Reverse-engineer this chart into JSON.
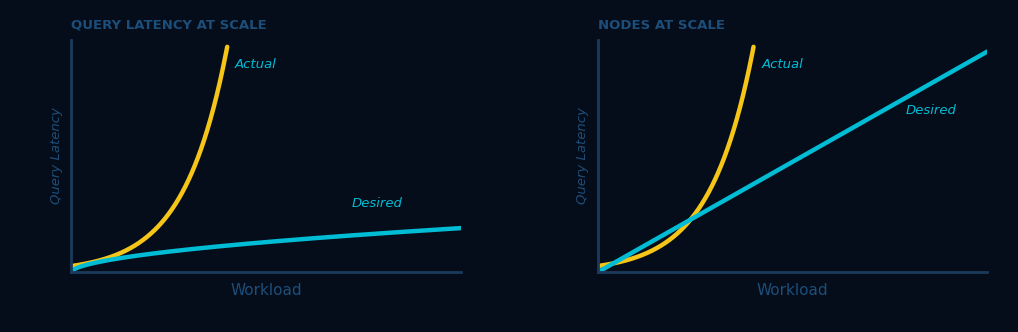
{
  "background_color": "#050d1a",
  "axis_color": "#1b3a5c",
  "title_color": "#1d4e7a",
  "ylabel_color": "#1d4e7a",
  "xlabel_color": "#1d4e7a",
  "actual_color": "#f5c518",
  "desired_color": "#00bcd4",
  "annotation_color": "#00bcd4",
  "title1": "QUERY LATENCY AT SCALE",
  "title2": "NODES AT SCALE",
  "ylabel": "Query Latency",
  "xlabel": "Workload",
  "label_actual": "Actual",
  "label_desired": "Desired",
  "title_fontsize": 9.5,
  "axis_label_fontsize": 9.5,
  "xlabel_fontsize": 11,
  "annotation_fontsize": 9.5,
  "line_width": 3.2,
  "figsize": [
    10.18,
    3.32
  ],
  "dpi": 100
}
